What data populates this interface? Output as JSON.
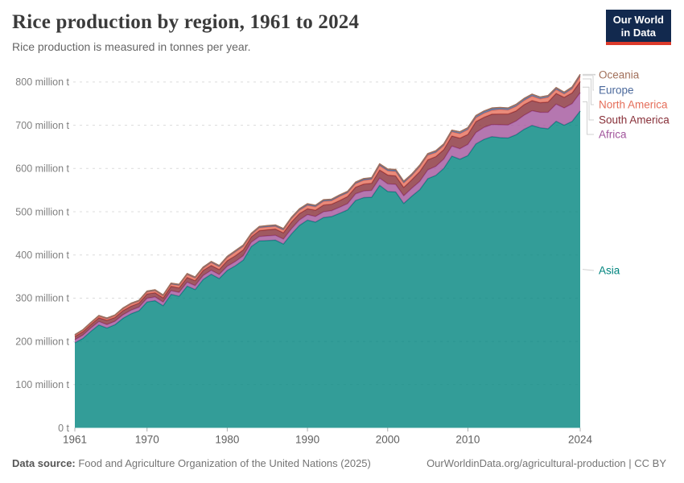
{
  "header": {
    "title": "Rice production by region, 1961 to 2024",
    "subtitle": "Rice production is measured in tonnes per year.",
    "logo_line1": "Our World",
    "logo_line2": "in Data",
    "logo_bg": "#12294E",
    "logo_accent": "#DC3A2B"
  },
  "footer": {
    "source_label": "Data source:",
    "source_text": " Food and Agriculture Organization of the United Nations (2025)",
    "right_text": "OurWorldinData.org/agricultural-production | CC BY"
  },
  "chart_data": {
    "type": "area",
    "stacked": true,
    "title": "Rice production by region, 1961 to 2024",
    "unit": "million tonnes",
    "xlabel": "",
    "ylabel": "million t",
    "xlim": [
      1961,
      2024
    ],
    "ylim": [
      0,
      800
    ],
    "grid": true,
    "legend_position": "right",
    "x": [
      1961,
      1962,
      1963,
      1964,
      1965,
      1966,
      1967,
      1968,
      1969,
      1970,
      1971,
      1972,
      1973,
      1974,
      1975,
      1976,
      1977,
      1978,
      1979,
      1980,
      1981,
      1982,
      1983,
      1984,
      1985,
      1986,
      1987,
      1988,
      1989,
      1990,
      1991,
      1992,
      1993,
      1994,
      1995,
      1996,
      1997,
      1998,
      1999,
      2000,
      2001,
      2002,
      2003,
      2004,
      2005,
      2006,
      2007,
      2008,
      2009,
      2010,
      2011,
      2012,
      2013,
      2014,
      2015,
      2016,
      2017,
      2018,
      2019,
      2020,
      2021,
      2022,
      2023,
      2024
    ],
    "xticks": [
      1961,
      1970,
      1980,
      1990,
      2000,
      2010,
      2024
    ],
    "yticks": [
      {
        "v": 0,
        "label": "0 t"
      },
      {
        "v": 100,
        "label": "100 million t"
      },
      {
        "v": 200,
        "label": "200 million t"
      },
      {
        "v": 300,
        "label": "300 million t"
      },
      {
        "v": 400,
        "label": "400 million t"
      },
      {
        "v": 500,
        "label": "500 million t"
      },
      {
        "v": 600,
        "label": "600 million t"
      },
      {
        "v": 700,
        "label": "700 million t"
      },
      {
        "v": 800,
        "label": "800 million t"
      }
    ],
    "series": [
      {
        "name": "Asia",
        "color": "#00847E",
        "label_y": 336,
        "values": [
          196.6,
          206.9,
          223.3,
          238.2,
          231.0,
          238.6,
          253.4,
          263.9,
          271.0,
          291.2,
          294.3,
          282.5,
          308.9,
          304.5,
          327.9,
          319.9,
          343.4,
          355.5,
          345.4,
          364.2,
          374.8,
          388.0,
          419.6,
          432.5,
          433.3,
          434.2,
          425.4,
          448.4,
          468.4,
          480.7,
          475.9,
          486.5,
          488.9,
          496.3,
          504.2,
          526.1,
          532.5,
          533.5,
          561.0,
          547.0,
          545.8,
          519.1,
          535.9,
          551.0,
          576.6,
          584.0,
          600.3,
          628.7,
          621.6,
          629.9,
          657.0,
          667.4,
          673.7,
          671.6,
          670.6,
          678.1,
          690.6,
          699.6,
          694.3,
          691.9,
          709.3,
          700.1,
          709.1,
          733.2
        ]
      },
      {
        "name": "Africa",
        "color": "#A2559C",
        "label_y": 167,
        "values": [
          7.2,
          7.4,
          7.6,
          7.8,
          7.9,
          7.7,
          8.0,
          8.1,
          8.2,
          8.4,
          8.5,
          8.3,
          8.5,
          8.9,
          9.1,
          9.2,
          8.9,
          9.2,
          9.4,
          9.6,
          9.9,
          10.1,
          9.8,
          10.2,
          10.9,
          11.3,
          11.2,
          12.0,
          12.4,
          12.6,
          13.2,
          13.4,
          13.6,
          14.0,
          14.5,
          15.2,
          15.4,
          15.9,
          16.6,
          17.4,
          17.3,
          17.7,
          18.2,
          19.0,
          20.0,
          21.0,
          21.5,
          23.0,
          24.1,
          25.8,
          26.0,
          27.5,
          28.0,
          29.5,
          30.0,
          31.5,
          32.5,
          34.0,
          35.5,
          38.0,
          39.5,
          40.0,
          41.0,
          42.0
        ]
      },
      {
        "name": "South America",
        "color": "#883039",
        "label_y": 149,
        "values": [
          7.5,
          8.0,
          8.2,
          8.8,
          9.8,
          9.0,
          9.7,
          9.4,
          9.5,
          10.3,
          9.9,
          10.0,
          10.2,
          10.5,
          11.0,
          11.5,
          12.0,
          11.0,
          11.5,
          13.0,
          13.5,
          13.8,
          12.5,
          13.5,
          14.0,
          14.5,
          14.8,
          15.5,
          15.0,
          13.5,
          14.5,
          15.5,
          15.0,
          15.5,
          16.5,
          15.5,
          16.0,
          16.5,
          19.0,
          20.5,
          19.8,
          19.5,
          19.8,
          23.0,
          23.5,
          22.5,
          22.0,
          23.5,
          24.5,
          23.0,
          25.5,
          23.5,
          24.0,
          25.0,
          25.5,
          23.5,
          24.5,
          23.5,
          22.5,
          24.0,
          25.0,
          24.5,
          25.0,
          26.0
        ]
      },
      {
        "name": "North America",
        "color": "#E56E5A",
        "label_y": 130,
        "values": [
          2.7,
          3.0,
          3.2,
          3.4,
          3.5,
          3.9,
          4.1,
          4.8,
          4.2,
          4.2,
          4.4,
          4.3,
          4.7,
          5.6,
          6.4,
          5.8,
          5.0,
          6.4,
          6.3,
          7.0,
          8.7,
          7.8,
          5.0,
          6.5,
          6.4,
          6.1,
          6.1,
          7.5,
          7.3,
          7.9,
          7.7,
          8.6,
          7.8,
          9.5,
          8.3,
          8.2,
          8.8,
          8.9,
          10.1,
          9.7,
          10.2,
          10.0,
          9.6,
          10.9,
          10.6,
          9.3,
          9.4,
          9.7,
          10.5,
          11.3,
          8.9,
          9.5,
          9.0,
          10.5,
          9.2,
          10.7,
          9.5,
          10.4,
          8.7,
          10.7,
          9.1,
          7.6,
          9.5,
          12.0
        ]
      },
      {
        "name": "Europe",
        "color": "#4C6A9C",
        "label_y": 112,
        "values": [
          1.4,
          1.5,
          1.5,
          1.6,
          1.7,
          1.7,
          1.8,
          1.9,
          1.9,
          1.9,
          2.0,
          2.0,
          2.1,
          2.1,
          2.2,
          2.1,
          2.2,
          2.3,
          2.3,
          2.4,
          2.4,
          2.5,
          2.5,
          2.6,
          2.7,
          2.7,
          2.7,
          2.8,
          2.9,
          3.0,
          2.9,
          2.8,
          2.7,
          2.5,
          2.6,
          2.6,
          2.7,
          2.7,
          2.8,
          3.0,
          3.1,
          3.2,
          3.2,
          3.4,
          3.4,
          3.4,
          3.5,
          3.6,
          4.0,
          4.3,
          4.4,
          4.2,
          4.1,
          4.0,
          4.1,
          4.2,
          4.1,
          4.0,
          4.1,
          4.0,
          3.9,
          3.6,
          3.8,
          4.2
        ]
      },
      {
        "name": "Oceania",
        "color": "#A2705A",
        "label_y": 93,
        "values": [
          0.2,
          0.2,
          0.2,
          0.2,
          0.2,
          0.2,
          0.25,
          0.25,
          0.25,
          0.3,
          0.3,
          0.3,
          0.35,
          0.4,
          0.45,
          0.5,
          0.55,
          0.6,
          0.65,
          0.7,
          0.75,
          0.8,
          0.6,
          0.65,
          0.7,
          0.75,
          0.8,
          0.85,
          0.9,
          0.9,
          0.8,
          1.0,
          1.0,
          1.1,
          1.1,
          0.95,
          1.4,
          1.3,
          1.4,
          1.1,
          1.8,
          1.3,
          0.4,
          0.6,
          0.3,
          1.0,
          0.2,
          0.1,
          0.1,
          0.2,
          0.8,
          0.9,
          1.2,
          0.8,
          0.7,
          0.3,
          0.8,
          0.6,
          0.1,
          0.1,
          0.5,
          0.7,
          0.5,
          0.6
        ]
      }
    ]
  }
}
